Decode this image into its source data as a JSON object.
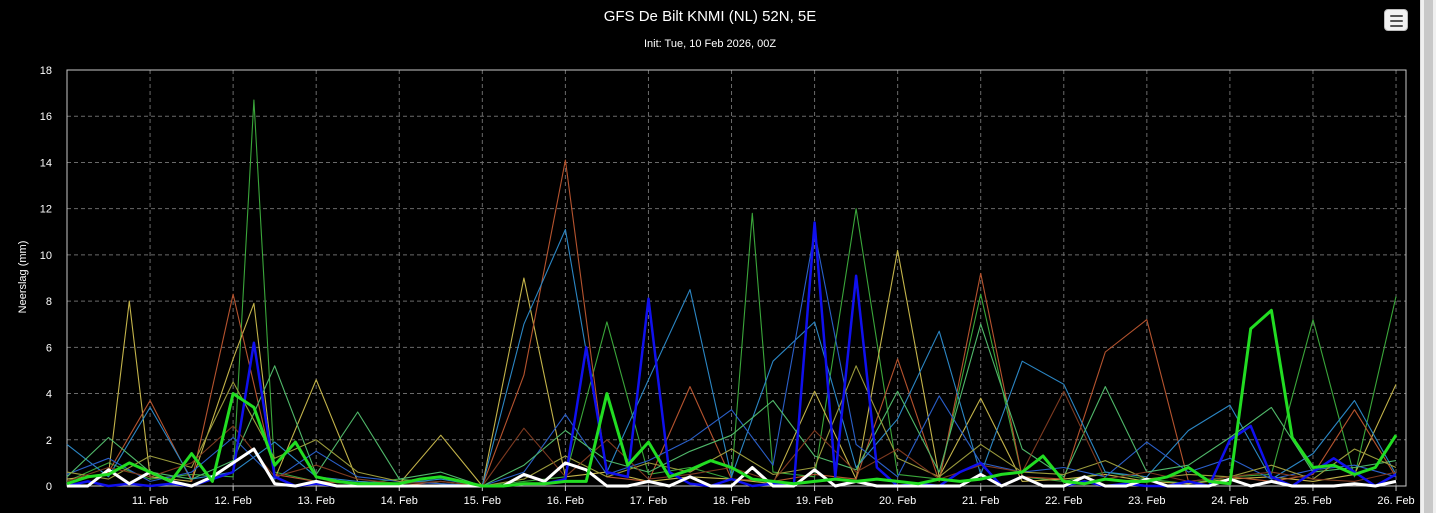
{
  "window": {
    "menu_icon": "hamburger-menu-icon",
    "background": "#000000"
  },
  "chart_data": {
    "type": "line",
    "title": "GFS De Bilt KNMI (NL) 52N, 5E",
    "subtitle": "Init: Tue, 10 Feb 2026, 00Z",
    "xlabel": "",
    "ylabel": "Neerslag (mm)",
    "ylim": [
      0,
      18
    ],
    "yticks": [
      0,
      2,
      4,
      6,
      8,
      10,
      12,
      14,
      16,
      18
    ],
    "xlim": [
      10.0,
      26.12
    ],
    "x_unit": "day of February 2026",
    "xtick_labels": [
      "11. Feb",
      "12. Feb",
      "13. Feb",
      "14. Feb",
      "15. Feb",
      "16. Feb",
      "17. Feb",
      "18. Feb",
      "19. Feb",
      "20. Feb",
      "21. Feb",
      "22. Feb",
      "23. Feb",
      "24. Feb",
      "25. Feb",
      "26. Feb"
    ],
    "grid": true,
    "legend": "none",
    "highlighted_series": [
      {
        "color": "#22dd22",
        "x": [
          10.0,
          10.25,
          10.5,
          10.75,
          11.0,
          11.25,
          11.5,
          11.75,
          12.0,
          12.25,
          12.5,
          12.75,
          13.0,
          13.25,
          13.5,
          13.75,
          14.0,
          14.25,
          14.5,
          14.75,
          15.0,
          15.25,
          15.5,
          15.75,
          16.0,
          16.25,
          16.5,
          16.75,
          17.0,
          17.25,
          17.5,
          17.75,
          18.0,
          18.25,
          18.5,
          18.75,
          19.0,
          19.25,
          19.5,
          19.75,
          20.0,
          20.25,
          20.5,
          20.75,
          21.0,
          21.25,
          21.5,
          21.75,
          22.0,
          22.25,
          22.5,
          22.75,
          23.0,
          23.25,
          23.5,
          23.75,
          24.0,
          24.25,
          24.5,
          24.75,
          25.0,
          25.25,
          25.5,
          25.75,
          26.0
        ],
        "values": [
          0.1,
          0.4,
          0.5,
          1.0,
          0.6,
          0.2,
          1.4,
          0.2,
          4.0,
          3.4,
          0.9,
          1.9,
          0.4,
          0.2,
          0.1,
          0.1,
          0.1,
          0.3,
          0.4,
          0.2,
          0.0,
          0.0,
          0.1,
          0.1,
          0.2,
          0.2,
          4.0,
          0.9,
          1.9,
          0.4,
          0.7,
          1.1,
          0.8,
          0.3,
          0.2,
          0.1,
          0.2,
          0.3,
          0.2,
          0.3,
          0.2,
          0.1,
          0.3,
          0.2,
          0.3,
          0.5,
          0.6,
          1.3,
          0.2,
          0.1,
          0.3,
          0.2,
          0.2,
          0.4,
          0.8,
          0.2,
          0.1,
          6.8,
          7.6,
          2.1,
          0.8,
          0.9,
          0.5,
          0.8,
          2.2
        ]
      },
      {
        "color": "#ffffff",
        "x": [
          10.0,
          10.25,
          10.5,
          10.75,
          11.0,
          11.25,
          11.5,
          11.75,
          12.0,
          12.25,
          12.5,
          12.75,
          13.0,
          13.25,
          13.5,
          13.75,
          14.0,
          14.25,
          14.5,
          14.75,
          15.0,
          15.25,
          15.5,
          15.75,
          16.0,
          16.25,
          16.5,
          16.75,
          17.0,
          17.25,
          17.5,
          17.75,
          18.0,
          18.25,
          18.5,
          18.75,
          19.0,
          19.25,
          19.5,
          19.75,
          20.0,
          20.25,
          20.5,
          20.75,
          21.0,
          21.25,
          21.5,
          21.75,
          22.0,
          22.25,
          22.5,
          22.75,
          23.0,
          23.25,
          23.5,
          23.75,
          24.0,
          24.25,
          24.5,
          24.75,
          25.0,
          25.25,
          25.5,
          25.75,
          26.0
        ],
        "values": [
          0.0,
          0.0,
          0.7,
          0.1,
          0.6,
          0.2,
          0.0,
          0.4,
          1.0,
          1.6,
          0.1,
          0.0,
          0.2,
          0.0,
          0.0,
          0.0,
          0.0,
          0.0,
          0.0,
          0.0,
          0.0,
          0.0,
          0.5,
          0.2,
          1.0,
          0.7,
          0.0,
          0.0,
          0.2,
          0.0,
          0.4,
          0.0,
          0.0,
          0.8,
          0.0,
          0.0,
          0.7,
          0.0,
          0.2,
          0.0,
          0.0,
          0.0,
          0.0,
          0.0,
          0.5,
          0.0,
          0.4,
          0.0,
          0.0,
          0.4,
          0.0,
          0.0,
          0.3,
          0.0,
          0.0,
          0.0,
          0.3,
          0.0,
          0.2,
          0.0,
          0.0,
          0.0,
          0.1,
          0.0,
          0.2
        ]
      },
      {
        "color": "#1010ee",
        "x": [
          10.0,
          10.25,
          10.5,
          10.75,
          11.0,
          11.25,
          11.5,
          11.75,
          12.0,
          12.25,
          12.5,
          12.75,
          13.0,
          13.25,
          13.5,
          13.75,
          14.0,
          14.25,
          14.5,
          14.75,
          15.0,
          15.25,
          15.5,
          15.75,
          16.0,
          16.25,
          16.5,
          16.75,
          17.0,
          17.25,
          17.5,
          17.75,
          18.0,
          18.25,
          18.5,
          18.75,
          19.0,
          19.25,
          19.5,
          19.75,
          20.0,
          20.25,
          20.5,
          20.75,
          21.0,
          21.25,
          21.5,
          21.75,
          22.0,
          22.25,
          22.5,
          22.75,
          23.0,
          23.25,
          23.5,
          23.75,
          24.0,
          24.25,
          24.5,
          24.75,
          25.0,
          25.25,
          25.5,
          25.75,
          26.0
        ],
        "values": [
          0.0,
          0.2,
          0.0,
          0.1,
          0.0,
          0.1,
          0.0,
          0.3,
          0.6,
          6.2,
          0.4,
          0.0,
          0.1,
          0.0,
          0.0,
          0.0,
          0.0,
          0.0,
          0.0,
          0.0,
          0.0,
          0.0,
          0.1,
          0.1,
          0.3,
          6.0,
          0.6,
          0.4,
          8.1,
          0.6,
          0.1,
          0.0,
          0.3,
          0.0,
          0.1,
          0.0,
          11.4,
          0.4,
          9.1,
          0.8,
          0.0,
          0.1,
          0.0,
          0.6,
          1.0,
          0.0,
          0.4,
          0.0,
          0.0,
          0.2,
          0.0,
          0.1,
          0.0,
          0.0,
          0.2,
          0.0,
          2.0,
          2.6,
          0.4,
          0.0,
          0.6,
          1.2,
          0.6,
          0.0,
          0.5
        ]
      }
    ],
    "ensemble_series": [
      {
        "color": "#3aa63a",
        "x": [
          10.0,
          10.5,
          11.0,
          11.5,
          12.0,
          12.25,
          12.5,
          13.0,
          13.5,
          14.0,
          14.5,
          15.0,
          15.5,
          16.0,
          16.5,
          17.0,
          17.5,
          18.0,
          18.25,
          18.5,
          19.0,
          19.5,
          20.0,
          20.5,
          21.0,
          21.5,
          22.0,
          22.5,
          23.0,
          23.5,
          24.0,
          24.5,
          25.0,
          25.5,
          26.0
        ],
        "values": [
          0.2,
          1.0,
          0.3,
          0.5,
          0.4,
          16.7,
          0.6,
          0.2,
          0.1,
          0.3,
          0.1,
          0.0,
          0.2,
          0.4,
          7.1,
          0.5,
          0.8,
          0.3,
          11.8,
          0.6,
          0.4,
          12.0,
          0.5,
          0.3,
          8.3,
          0.4,
          0.2,
          0.6,
          0.3,
          0.1,
          0.4,
          0.5,
          7.2,
          0.4,
          8.2
        ]
      },
      {
        "color": "#c4b44a",
        "x": [
          10.0,
          10.5,
          10.75,
          11.0,
          11.5,
          12.0,
          12.25,
          12.5,
          13.0,
          13.5,
          14.0,
          14.5,
          15.0,
          15.5,
          16.0,
          16.5,
          17.0,
          17.5,
          18.0,
          18.5,
          19.0,
          19.5,
          20.0,
          20.5,
          21.0,
          21.5,
          22.0,
          22.5,
          23.0,
          23.5,
          24.0,
          24.5,
          25.0,
          25.5,
          26.0
        ],
        "values": [
          0.3,
          0.5,
          8.0,
          0.4,
          0.2,
          5.5,
          7.9,
          0.3,
          4.6,
          0.2,
          0.1,
          2.2,
          0.0,
          9.0,
          0.4,
          0.6,
          0.2,
          0.4,
          0.3,
          0.1,
          4.1,
          0.3,
          10.2,
          0.4,
          3.8,
          0.2,
          0.3,
          0.5,
          0.2,
          0.1,
          0.3,
          0.4,
          0.2,
          0.5,
          4.4
        ]
      },
      {
        "color": "#b5532e",
        "x": [
          10.0,
          10.5,
          11.0,
          11.5,
          12.0,
          12.5,
          13.0,
          13.5,
          14.0,
          14.5,
          15.0,
          15.5,
          16.0,
          16.5,
          17.0,
          17.5,
          18.0,
          18.5,
          19.0,
          19.5,
          20.0,
          20.5,
          21.0,
          21.5,
          22.0,
          22.5,
          23.0,
          23.5,
          24.0,
          24.5,
          25.0,
          25.5,
          26.0
        ],
        "values": [
          0.1,
          0.6,
          3.7,
          0.2,
          8.3,
          0.5,
          0.2,
          0.1,
          0.0,
          0.2,
          0.0,
          4.8,
          14.1,
          0.4,
          0.2,
          4.3,
          0.3,
          0.2,
          0.5,
          0.3,
          5.5,
          0.2,
          9.2,
          0.4,
          0.3,
          5.8,
          7.2,
          0.2,
          0.4,
          0.2,
          0.5,
          3.3,
          0.4
        ]
      },
      {
        "color": "#2b86c4",
        "x": [
          10.0,
          10.5,
          11.0,
          11.5,
          12.0,
          12.5,
          13.0,
          13.5,
          14.0,
          14.5,
          15.0,
          15.5,
          16.0,
          16.5,
          17.0,
          17.5,
          18.0,
          18.5,
          19.0,
          19.5,
          20.0,
          20.5,
          21.0,
          21.5,
          22.0,
          22.5,
          23.0,
          23.5,
          24.0,
          24.5,
          25.0,
          25.5,
          26.0
        ],
        "values": [
          1.8,
          0.4,
          3.4,
          0.3,
          0.6,
          1.9,
          0.4,
          0.2,
          0.1,
          0.3,
          0.0,
          7.0,
          11.1,
          0.6,
          4.6,
          8.5,
          0.4,
          5.4,
          7.1,
          0.8,
          2.9,
          6.7,
          0.5,
          5.4,
          4.4,
          0.6,
          0.4,
          2.4,
          3.5,
          0.3,
          1.4,
          3.7,
          0.5
        ]
      },
      {
        "color": "#2a5fc8",
        "x": [
          10.0,
          10.5,
          11.0,
          11.5,
          12.0,
          12.5,
          13.0,
          13.5,
          14.0,
          14.5,
          15.0,
          15.5,
          16.0,
          16.5,
          17.0,
          17.5,
          18.0,
          18.5,
          19.0,
          19.5,
          20.0,
          20.5,
          21.0,
          21.5,
          22.0,
          22.5,
          23.0,
          23.5,
          24.0,
          24.5,
          25.0,
          25.5,
          26.0
        ],
        "values": [
          0.5,
          1.2,
          0.2,
          0.6,
          2.1,
          0.3,
          1.5,
          0.4,
          0.2,
          0.1,
          0.0,
          0.6,
          3.1,
          0.5,
          1.1,
          2.0,
          3.3,
          0.9,
          11.0,
          1.8,
          0.4,
          3.9,
          1.0,
          0.6,
          0.8,
          0.4,
          1.9,
          0.6,
          1.2,
          0.3,
          0.7,
          0.9,
          0.4
        ]
      },
      {
        "color": "#50b86a",
        "x": [
          10.0,
          10.5,
          11.0,
          11.5,
          12.0,
          12.5,
          13.0,
          13.5,
          14.0,
          14.5,
          15.0,
          15.5,
          16.0,
          16.5,
          17.0,
          17.5,
          18.0,
          18.5,
          19.0,
          19.5,
          20.0,
          20.5,
          21.0,
          21.5,
          22.0,
          22.5,
          23.0,
          23.5,
          24.0,
          24.5,
          25.0,
          25.5,
          26.0
        ],
        "values": [
          0.4,
          2.1,
          0.6,
          0.3,
          1.1,
          5.2,
          0.5,
          3.2,
          0.3,
          0.6,
          0.0,
          0.9,
          2.4,
          1.1,
          0.6,
          1.5,
          2.2,
          3.7,
          1.3,
          0.7,
          4.1,
          0.6,
          7.0,
          1.6,
          0.4,
          4.3,
          0.6,
          0.9,
          2.1,
          3.4,
          0.6,
          0.8,
          1.1
        ]
      },
      {
        "color": "#9a9a3c",
        "x": [
          10.0,
          10.5,
          11.0,
          11.5,
          12.0,
          12.5,
          13.0,
          13.5,
          14.0,
          14.5,
          15.0,
          15.5,
          16.0,
          16.5,
          17.0,
          17.5,
          18.0,
          18.5,
          19.0,
          19.5,
          20.0,
          20.5,
          21.0,
          21.5,
          22.0,
          22.5,
          23.0,
          23.5,
          24.0,
          24.5,
          25.0,
          25.5,
          26.0
        ],
        "values": [
          0.6,
          0.3,
          1.3,
          0.8,
          4.5,
          1.2,
          2.0,
          0.6,
          0.2,
          0.4,
          0.0,
          0.3,
          1.3,
          0.4,
          1.0,
          0.6,
          1.6,
          0.5,
          0.8,
          5.2,
          1.2,
          0.4,
          1.8,
          0.6,
          0.5,
          1.1,
          0.3,
          0.5,
          0.4,
          0.9,
          0.3,
          1.6,
          0.8
        ]
      },
      {
        "color": "#7e3a20",
        "x": [
          10.0,
          10.5,
          11.0,
          11.5,
          12.0,
          12.5,
          13.0,
          13.5,
          14.0,
          14.5,
          15.0,
          15.5,
          16.0,
          16.5,
          17.0,
          17.5,
          18.0,
          18.5,
          19.0,
          19.5,
          20.0,
          20.5,
          21.0,
          21.5,
          22.0,
          22.5,
          23.0,
          23.5,
          24.0,
          24.5,
          25.0,
          25.5,
          26.0
        ],
        "values": [
          0.2,
          0.8,
          0.4,
          1.0,
          2.6,
          0.4,
          0.9,
          0.3,
          0.1,
          0.2,
          0.0,
          2.5,
          0.4,
          2.0,
          0.3,
          0.5,
          0.8,
          0.2,
          2.4,
          0.6,
          1.6,
          0.3,
          0.9,
          0.6,
          4.1,
          0.3,
          0.6,
          0.2,
          0.4,
          0.6,
          0.3,
          0.2,
          0.6
        ]
      }
    ]
  }
}
